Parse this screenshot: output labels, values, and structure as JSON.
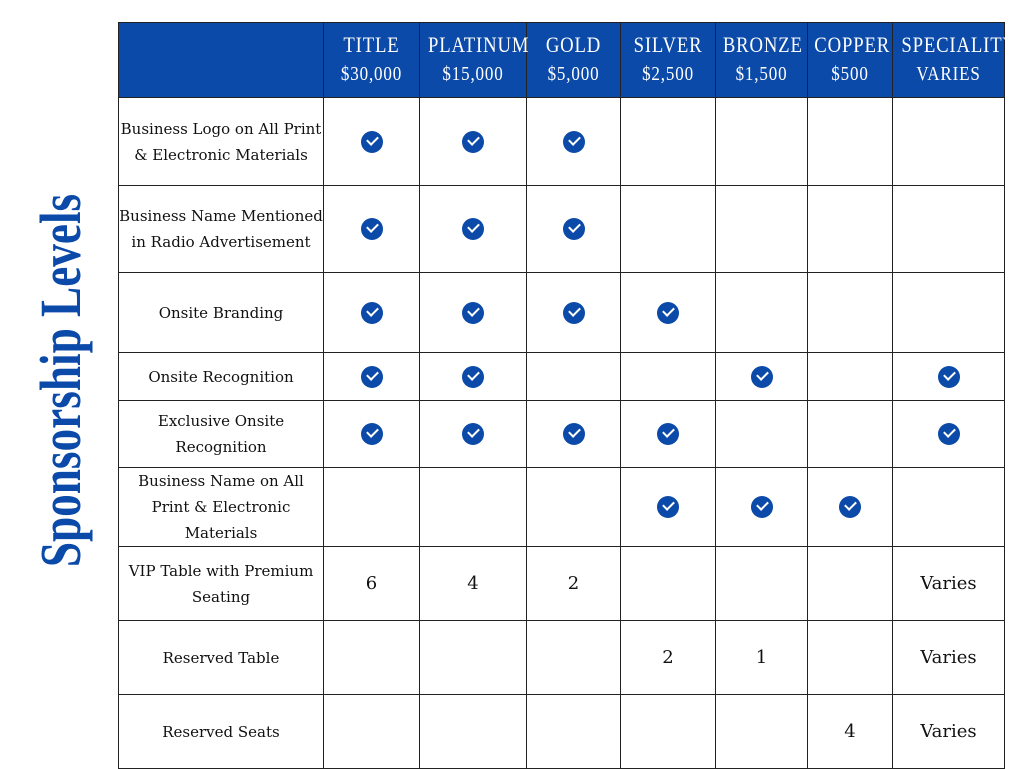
{
  "side_title": "Sponsorship Levels",
  "accent_color": "#0b4aa8",
  "tiers": [
    {
      "name": "TITLE",
      "price": "$30,000"
    },
    {
      "name": "PLATINUM",
      "price": "$15,000"
    },
    {
      "name": "GOLD",
      "price": "$5,000"
    },
    {
      "name": "SILVER",
      "price": "$2,500"
    },
    {
      "name": "BRONZE",
      "price": "$1,500"
    },
    {
      "name": "COPPER",
      "price": "$500"
    },
    {
      "name": "SPECIALITY",
      "price": "VARIES"
    }
  ],
  "rows": [
    {
      "feature": "Business Logo on All Print & Electronic Materials",
      "cells": [
        "check",
        "check",
        "check",
        "",
        "",
        "",
        ""
      ]
    },
    {
      "feature": "Business Name Mentioned in Radio Advertisement",
      "cells": [
        "check",
        "check",
        "check",
        "",
        "",
        "",
        ""
      ]
    },
    {
      "feature": "Onsite Branding",
      "cells": [
        "check",
        "check",
        "check",
        "check",
        "",
        "",
        ""
      ]
    },
    {
      "feature": "Onsite Recognition",
      "cells": [
        "check",
        "check",
        "",
        "",
        "check",
        "",
        "check"
      ]
    },
    {
      "feature": "Exclusive Onsite Recognition",
      "cells": [
        "check",
        "check",
        "check",
        "check",
        "",
        "",
        "check"
      ]
    },
    {
      "feature": "Business Name on All Print & Electronic Materials",
      "cells": [
        "",
        "",
        "",
        "check",
        "check",
        "check",
        ""
      ]
    },
    {
      "feature": "VIP Table with Premium Seating",
      "cells": [
        "6",
        "4",
        "2",
        "",
        "",
        "",
        "Varies"
      ]
    },
    {
      "feature": "Reserved Table",
      "cells": [
        "",
        "",
        "",
        "2",
        "1",
        "",
        "Varies"
      ]
    },
    {
      "feature": "Reserved Seats",
      "cells": [
        "",
        "",
        "",
        "",
        "",
        "4",
        "Varies"
      ]
    }
  ]
}
